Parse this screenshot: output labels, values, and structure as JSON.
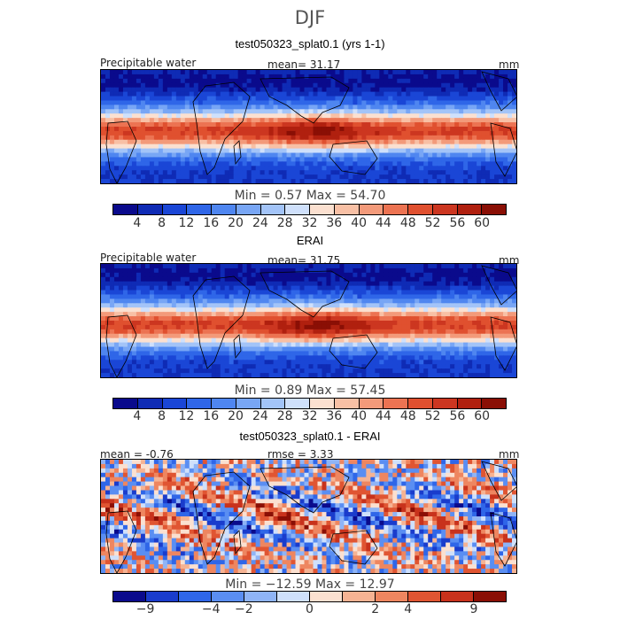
{
  "season": "DJF",
  "panels": [
    {
      "title": "test050323_splat0.1 (yrs 1-1)",
      "left_label": "Precipitable water",
      "center_label": "mean=  31.17",
      "units": "mm",
      "min_max": "Min =    0.57  Max =   54.70",
      "field": "precip",
      "seed": 11
    },
    {
      "title": "ERAI",
      "left_label": "Precipitable water",
      "center_label": "mean=  31.75",
      "units": "mm",
      "min_max": "Min =    0.89  Max =   57.45",
      "field": "precip",
      "seed": 27
    },
    {
      "title": "test050323_splat0.1 - ERAI",
      "left_label": "mean =  -0.76",
      "center_label": "rmse =    3.33",
      "units": "mm",
      "min_max": "Min = −12.59  Max =   12.97",
      "field": "diff",
      "seed": 53
    }
  ],
  "colorbars": {
    "precip": {
      "colors": [
        "#0a0a8c",
        "#0f2bb5",
        "#1a46d6",
        "#2f66e8",
        "#4f86f0",
        "#78a6f5",
        "#a3c4f8",
        "#cfe0fb",
        "#fbe0d0",
        "#f8c0a5",
        "#f39a7a",
        "#ec7352",
        "#e0502f",
        "#cc3620",
        "#b0200f",
        "#8a0f05"
      ],
      "ticks": [
        "4",
        "8",
        "12",
        "16",
        "20",
        "24",
        "28",
        "32",
        "36",
        "40",
        "44",
        "48",
        "52",
        "56",
        "60"
      ]
    },
    "diff": {
      "colors": [
        "#0a0a8c",
        "#1a3ccc",
        "#2f66e8",
        "#5a8ef2",
        "#8fb4f6",
        "#cfe0fb",
        "#fbe0d0",
        "#f6b393",
        "#ee8660",
        "#e05532",
        "#c8321c",
        "#8a0f05"
      ],
      "ticks": [
        "−9",
        "−4",
        "−2",
        "0",
        "2",
        "4",
        "9"
      ]
    }
  }
}
